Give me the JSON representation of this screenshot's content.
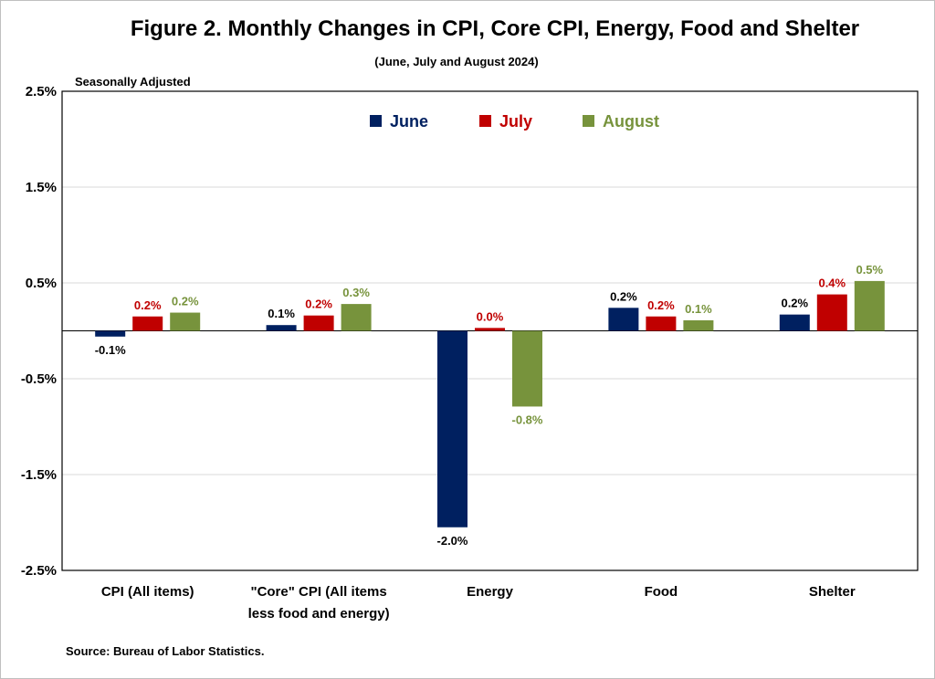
{
  "chart_data": {
    "type": "bar",
    "title": "Figure 2. Monthly Changes in CPI, Core CPI, Energy, Food and Shelter",
    "subtitle": "(June, July and August 2024)",
    "ylabel": "Seasonally Adjusted",
    "source": "Source: Bureau of Labor Statistics.",
    "categories": [
      [
        "CPI (All items)"
      ],
      [
        "\"Core\" CPI (All items",
        "less food and energy)"
      ],
      [
        "Energy"
      ],
      [
        "Food"
      ],
      [
        "Shelter"
      ]
    ],
    "series": [
      {
        "name": "June",
        "color": "#002060",
        "values": [
          -0.1,
          0.1,
          -2.0,
          0.2,
          0.2
        ],
        "plot_values": [
          -0.06,
          0.06,
          -2.05,
          0.24,
          0.17
        ],
        "labels": [
          "-0.1%",
          "0.1%",
          "-2.0%",
          "0.2%",
          "0.2%"
        ]
      },
      {
        "name": "July",
        "color": "#c00000",
        "values": [
          0.2,
          0.2,
          0.0,
          0.2,
          0.4
        ],
        "plot_values": [
          0.15,
          0.16,
          0.03,
          0.15,
          0.38
        ],
        "labels": [
          "0.2%",
          "0.2%",
          "0.0%",
          "0.2%",
          "0.4%"
        ]
      },
      {
        "name": "August",
        "color": "#77933c",
        "values": [
          0.2,
          0.3,
          -0.8,
          0.1,
          0.5
        ],
        "plot_values": [
          0.19,
          0.28,
          -0.79,
          0.11,
          0.52
        ],
        "labels": [
          "0.2%",
          "0.3%",
          "-0.8%",
          "0.1%",
          "0.5%"
        ]
      }
    ],
    "yticks": [
      2.5,
      1.5,
      0.5,
      -0.5,
      -1.5,
      -2.5
    ],
    "ytick_labels": [
      "2.5%",
      "1.5%",
      "0.5%",
      "-0.5%",
      "-1.5%",
      "-2.5%"
    ],
    "ylim": [
      -2.5,
      2.5
    ],
    "grid": true,
    "legend_position": "top-center"
  }
}
